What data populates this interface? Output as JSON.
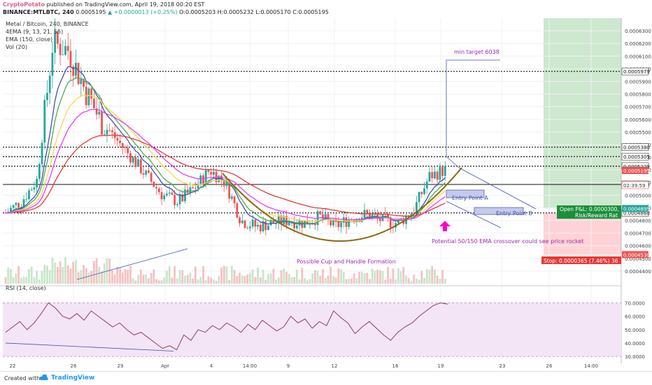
{
  "header": {
    "author": "CryptoPotato",
    "published": "published on TradingView.com, April 19, 2018 00:20 EST",
    "symbol": "BINANCE:MTLBTC, 240",
    "last": "0.0005195",
    "change": "▲ +0.0000013 (+0.25%)",
    "ohlc": "O:0.0005203 H:0.0005232 L:0.0005170 C:0.0005195"
  },
  "legend": [
    "Metal / Bitcoin, 240, BINANCE",
    "4EMA (9, 13, 21, 55)",
    "EMA (150, close)",
    "Vol (20)"
  ],
  "colors": {
    "up": "#26a69a",
    "down": "#ef5350",
    "ema9": "#3f51b5",
    "ema13": "#4caf50",
    "ema21": "#ffd54f",
    "ema55": "#e53935",
    "ema150": "#e040fb",
    "cup": "#8b6914",
    "annotation": "#9c27b0",
    "profit_zone": "#c8e6c9",
    "stop_zone": "#ffcdd2",
    "rsi_band": "#f3e5f5",
    "rsi_line": "#8e3b6b",
    "arrow": "#ff00cc"
  },
  "chart_data": {
    "type": "candlestick",
    "price_axis": {
      "range": [
        0.00043,
        0.00064
      ],
      "ticks": [
        "0.0006300",
        "0.0006200",
        "0.0006100",
        "0.0006000",
        "0.0005900",
        "0.0005800",
        "0.0005700",
        "0.0005600",
        "0.0005500",
        "0.0005400",
        "0.0005300",
        "0.0005200",
        "0.0005100",
        "0.0005000",
        "0.0004900",
        "0.0004800",
        "0.0004700",
        "0.0004600",
        "0.0004500",
        "0.0004400"
      ]
    },
    "time_axis": [
      "22",
      "26",
      "29",
      "Apr",
      "4",
      "14:00",
      "9",
      "12",
      "16",
      "19",
      "23",
      "26",
      "14:00"
    ],
    "price_path": [
      [
        0,
        0.000486
      ],
      [
        1,
        0.000495
      ],
      [
        2,
        0.000512
      ],
      [
        3,
        0.00062
      ],
      [
        4,
        0.000615
      ],
      [
        5,
        0.000585
      ],
      [
        6,
        0.00056
      ],
      [
        7,
        0.000545
      ],
      [
        8,
        0.00053
      ],
      [
        9,
        0.000515
      ],
      [
        10,
        0.0005
      ],
      [
        11,
        0.000495
      ],
      [
        12,
        0.000505
      ],
      [
        13,
        0.00052
      ],
      [
        14,
        0.00051
      ],
      [
        15,
        0.00048
      ],
      [
        16,
        0.000475
      ],
      [
        17,
        0.000478
      ],
      [
        18,
        0.00048
      ],
      [
        19,
        0.000478
      ],
      [
        20,
        0.000483
      ],
      [
        21,
        0.000475
      ],
      [
        22,
        0.000482
      ],
      [
        23,
        0.000485
      ],
      [
        24,
        0.00048
      ],
      [
        25,
        0.000478
      ],
      [
        26,
        0.000488
      ],
      [
        27,
        0.000515
      ],
      [
        28,
        0.00052
      ]
    ],
    "levels": [
      {
        "price": 0.0005979,
        "label": "0.0005979"
      },
      {
        "price": 0.000538,
        "label": "0.0005380"
      },
      {
        "price": 0.0005305,
        "label": "0.0005305"
      },
      {
        "price": 0.0005229,
        "label": "0.0005229"
      },
      {
        "price": 0.0005085,
        "label": "0.0005085"
      },
      {
        "price": 0.000486,
        "label": "0.0004860"
      }
    ],
    "price_labels": [
      {
        "price": 0.0005199,
        "text": "0.0005199",
        "color": "#26a69a"
      },
      {
        "price": 0.0005195,
        "text": "0.0005195",
        "color": "#ef5350"
      },
      {
        "price": 0.0004895,
        "text": "0.0004895",
        "color": "#26a69a"
      },
      {
        "price": 0.000453,
        "text": "0.0004530",
        "color": "#ef5350"
      }
    ],
    "rsi": {
      "label": "RSI (14, close)",
      "ticks": [
        "70.0000",
        "60.0000",
        "50.0000",
        "40.0000",
        "30.0000"
      ],
      "range": [
        28,
        78
      ],
      "values": [
        48,
        52,
        56,
        50,
        55,
        62,
        70,
        66,
        60,
        58,
        62,
        57,
        64,
        60,
        56,
        52,
        55,
        50,
        46,
        48,
        44,
        40,
        36,
        38,
        35,
        46,
        42,
        50,
        48,
        53,
        50,
        55,
        52,
        48,
        54,
        50,
        57,
        53,
        49,
        52,
        60,
        55,
        58,
        51,
        56,
        53,
        64,
        59,
        55,
        47,
        52,
        56,
        51,
        46,
        42,
        48,
        52,
        55,
        60,
        64,
        68,
        70,
        69
      ]
    }
  },
  "annotations": {
    "min_target": "min target 6038",
    "entry_a": "Entry Point A",
    "entry_b": "Entry Point B",
    "ema_note": "Potential 50/150 EMA crossover could see price rocket",
    "cup_note": "Possible Cup and Handle Formation",
    "open_pl": "Open P&L: 0.0000300,",
    "risk_reward": "Risk/Reward Rat",
    "stop": "Stop: 0.0000365 (7.46%) 36",
    "countdown": "02:39:59"
  },
  "footer": {
    "created": "Created with",
    "brand": "TradingView"
  }
}
